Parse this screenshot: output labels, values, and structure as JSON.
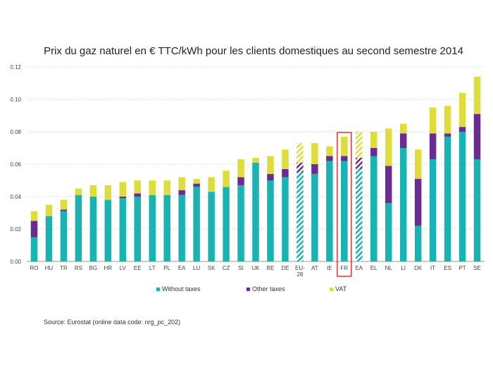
{
  "chart_data": {
    "type": "bar",
    "stacked": true,
    "title": "Prix du gaz naturel en € TTC/kWh pour les clients domestiques au second semestre 2014",
    "xlabel": "",
    "ylabel": "",
    "ylim": [
      0,
      0.12
    ],
    "yticks": [
      "0.00",
      "0.02",
      "0.04",
      "0.06",
      "0.08",
      "0.10",
      "0.12"
    ],
    "grid": true,
    "legend_position": "bottom",
    "categories": [
      "RO",
      "HU",
      "TR",
      "RS",
      "BG",
      "HR",
      "LV",
      "EE",
      "LT",
      "PL",
      "EA",
      "LU",
      "SK",
      "CZ",
      "SI",
      "UK",
      "BE",
      "DE",
      "EU-28",
      "AT",
      "IE",
      "FR",
      "EA",
      "EL",
      "NL",
      "LI",
      "DK",
      "IT",
      "ES",
      "PT",
      "SE"
    ],
    "hatched_categories": [
      18,
      22
    ],
    "highlighted_category": 21,
    "series": [
      {
        "name": "Without taxes",
        "color": "#1ab3b3",
        "values": [
          0.015,
          0.028,
          0.031,
          0.041,
          0.04,
          0.038,
          0.039,
          0.04,
          0.041,
          0.041,
          0.041,
          0.046,
          0.043,
          0.046,
          0.047,
          0.061,
          0.05,
          0.052,
          0.055,
          0.054,
          0.062,
          0.062,
          0.057,
          0.065,
          0.036,
          0.07,
          0.022,
          0.063,
          0.077,
          0.08,
          0.063
        ]
      },
      {
        "name": "Other taxes",
        "color": "#6a2c91",
        "values": [
          0.01,
          0.0,
          0.001,
          0.0,
          0.0,
          0.0,
          0.001,
          0.002,
          0.0,
          0.0,
          0.003,
          0.002,
          0.0,
          0.0,
          0.005,
          0.0,
          0.004,
          0.005,
          0.006,
          0.006,
          0.003,
          0.003,
          0.007,
          0.005,
          0.023,
          0.009,
          0.029,
          0.016,
          0.002,
          0.003,
          0.028
        ]
      },
      {
        "name": "VAT",
        "color": "#dedd3c",
        "values": [
          0.006,
          0.007,
          0.006,
          0.004,
          0.007,
          0.009,
          0.009,
          0.008,
          0.009,
          0.009,
          0.008,
          0.003,
          0.009,
          0.01,
          0.011,
          0.003,
          0.011,
          0.012,
          0.012,
          0.013,
          0.006,
          0.012,
          0.016,
          0.01,
          0.023,
          0.006,
          0.018,
          0.016,
          0.017,
          0.021,
          0.023
        ]
      }
    ]
  },
  "source": "Source: Eurostat (online data code: nrg_pc_202)"
}
